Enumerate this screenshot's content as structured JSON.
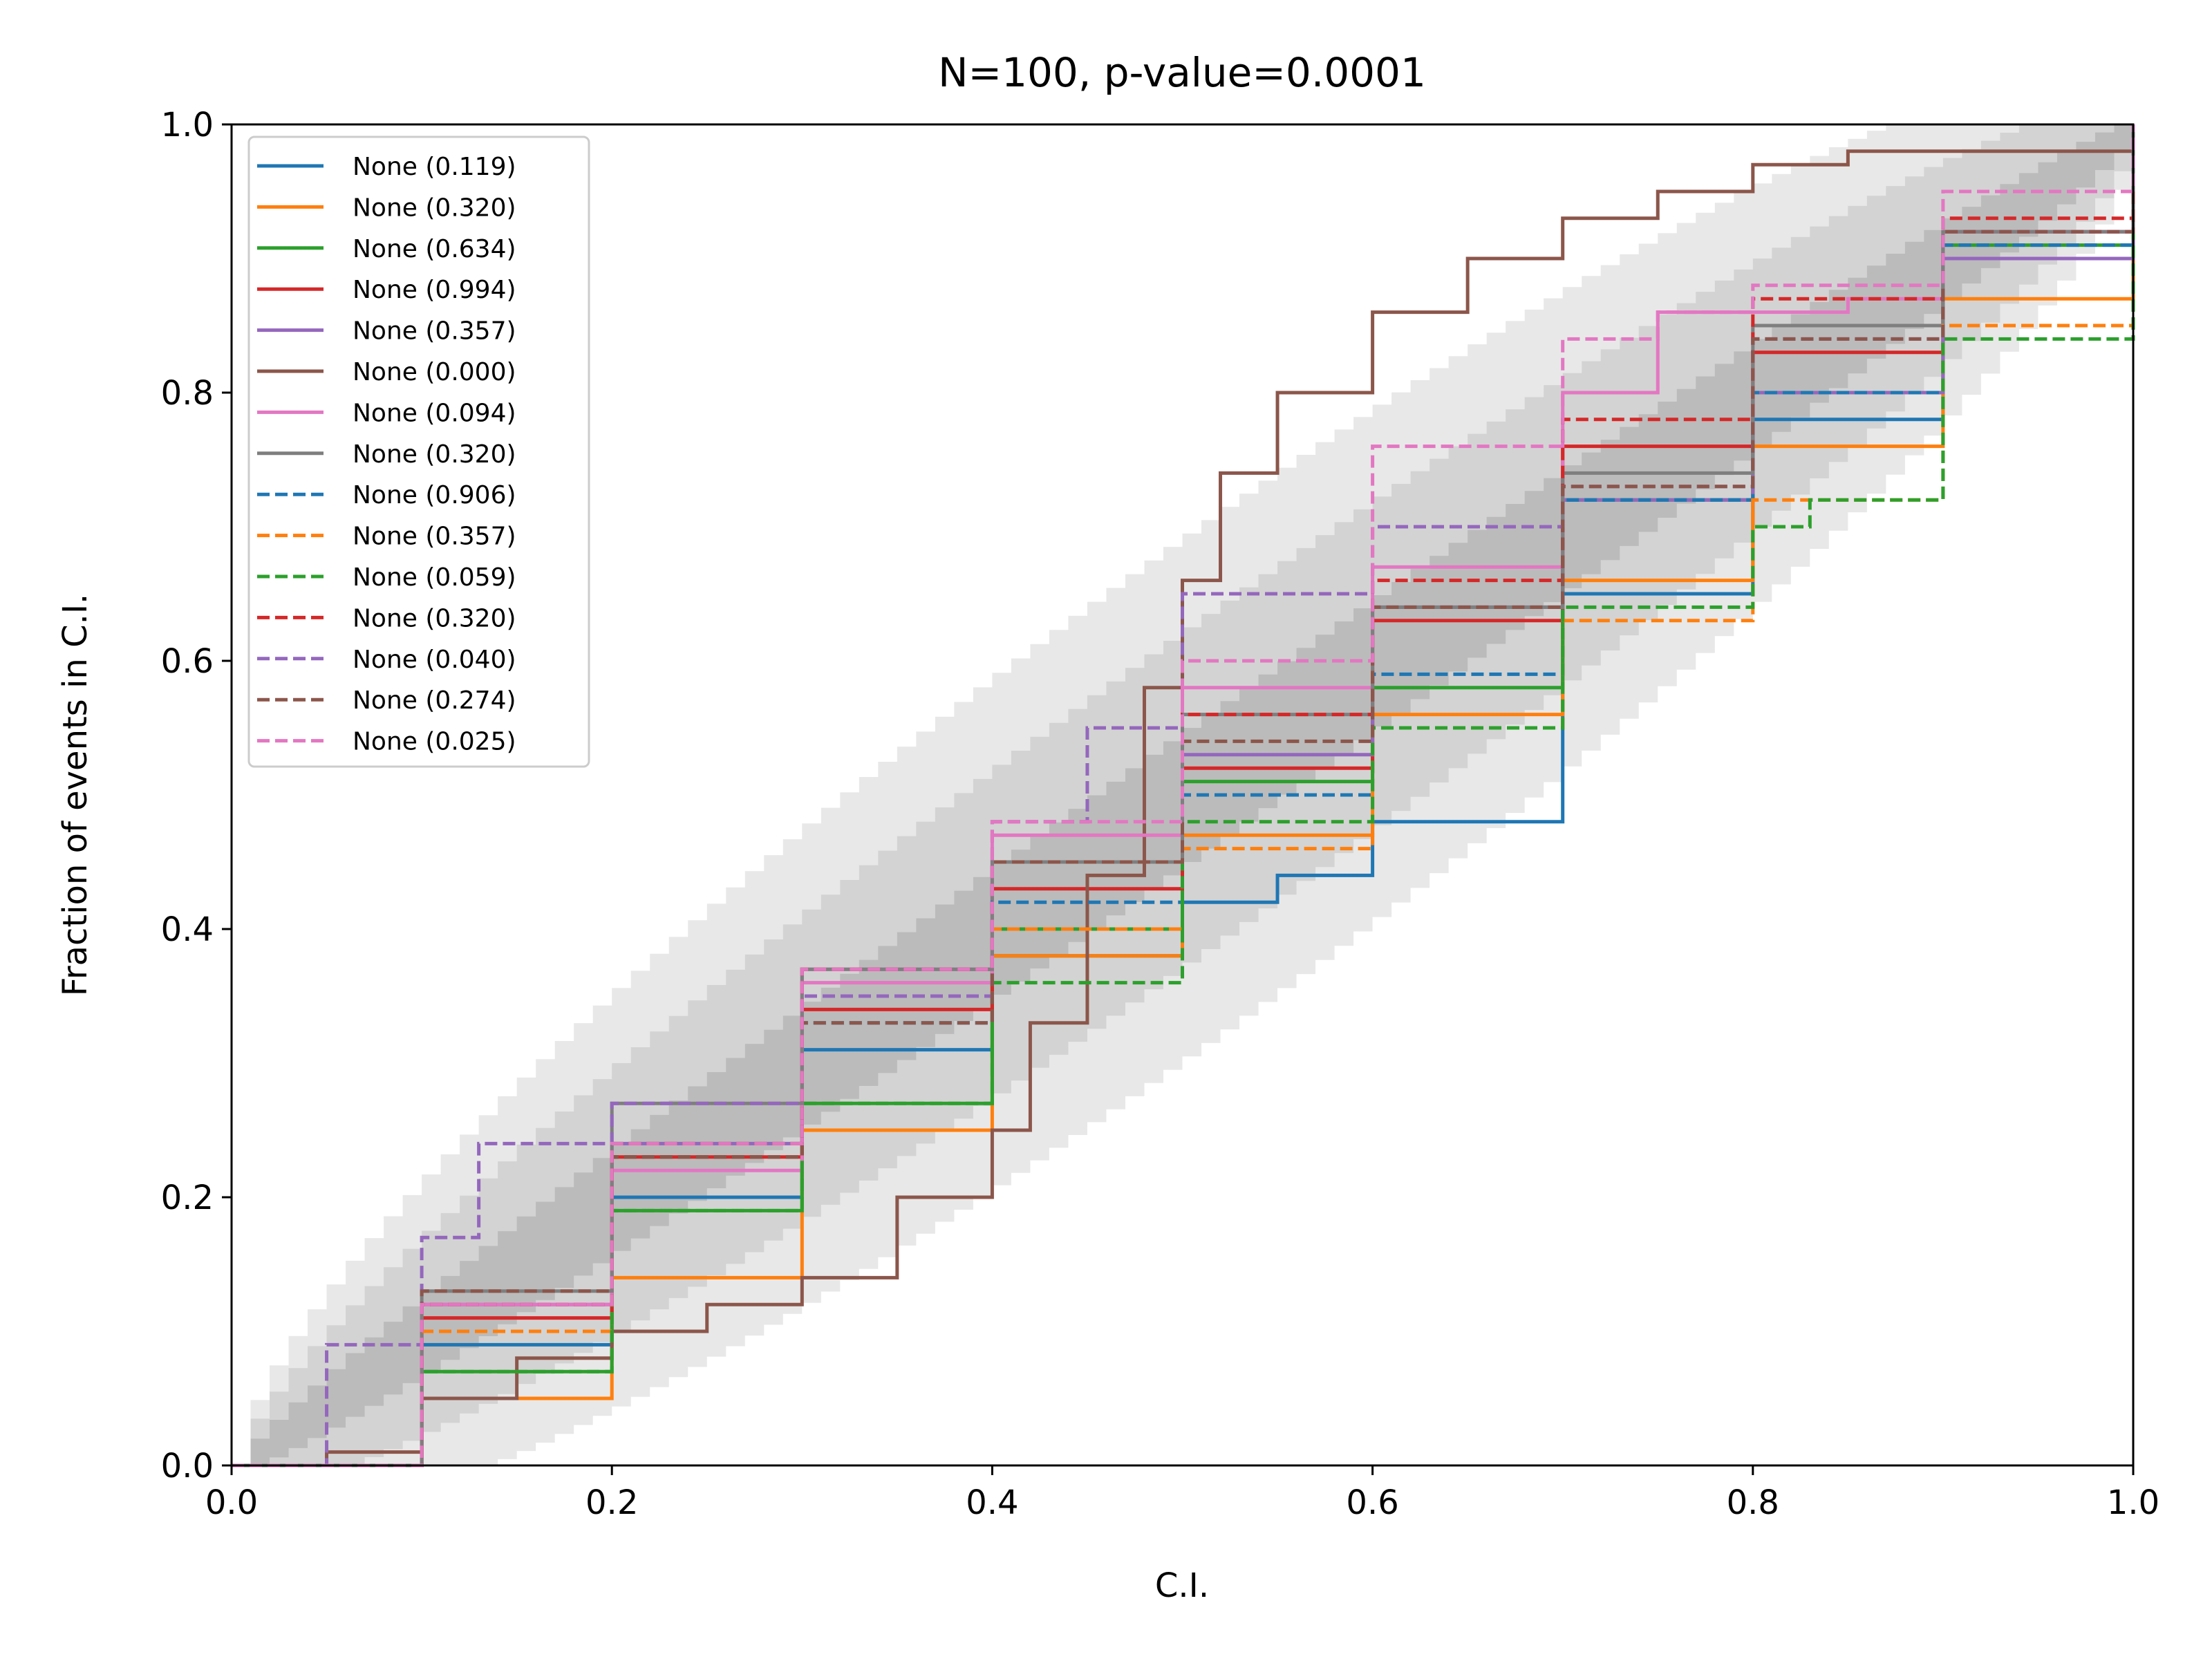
{
  "chart_data": {
    "type": "line",
    "title": "N=100, p-value=0.0001",
    "xlabel": "C.I.",
    "ylabel": "Fraction of events in C.I.",
    "xlim": [
      0.0,
      1.0
    ],
    "ylim": [
      0.0,
      1.0
    ],
    "xticks": [
      "0.0",
      "0.2",
      "0.4",
      "0.6",
      "0.8",
      "1.0"
    ],
    "yticks": [
      "0.0",
      "0.2",
      "0.4",
      "0.6",
      "0.8",
      "1.0"
    ],
    "legend_position": "upper-left",
    "bands": [
      {
        "name": "3-sigma band",
        "color": "#e6e6e6"
      },
      {
        "name": "2-sigma band",
        "color": "#d0d0d0"
      },
      {
        "name": "1-sigma band",
        "color": "#b8b8b8"
      }
    ],
    "series": [
      {
        "name": "None (0.119)",
        "color": "#1f77b4",
        "dash": "solid",
        "x": [
          0,
          0.1,
          0.2,
          0.3,
          0.4,
          0.5,
          0.55,
          0.6,
          0.7,
          0.8,
          0.9,
          1.0
        ],
        "y": [
          0,
          0.09,
          0.2,
          0.31,
          0.38,
          0.42,
          0.44,
          0.48,
          0.65,
          0.78,
          0.9,
          1.0
        ]
      },
      {
        "name": "None (0.320)",
        "color": "#ff7f0e",
        "dash": "solid",
        "x": [
          0,
          0.1,
          0.2,
          0.3,
          0.4,
          0.5,
          0.6,
          0.7,
          0.8,
          0.9,
          1.0
        ],
        "y": [
          0,
          0.05,
          0.14,
          0.25,
          0.38,
          0.47,
          0.56,
          0.66,
          0.76,
          0.87,
          1.0
        ]
      },
      {
        "name": "None (0.634)",
        "color": "#2ca02c",
        "dash": "solid",
        "x": [
          0,
          0.1,
          0.2,
          0.3,
          0.4,
          0.5,
          0.6,
          0.7,
          0.8,
          0.9,
          1.0
        ],
        "y": [
          0,
          0.07,
          0.19,
          0.27,
          0.4,
          0.51,
          0.58,
          0.72,
          0.8,
          0.91,
          1.0
        ]
      },
      {
        "name": "None (0.994)",
        "color": "#d62728",
        "dash": "solid",
        "x": [
          0,
          0.1,
          0.2,
          0.3,
          0.4,
          0.5,
          0.6,
          0.7,
          0.8,
          0.9,
          1.0
        ],
        "y": [
          0,
          0.11,
          0.23,
          0.34,
          0.43,
          0.52,
          0.63,
          0.76,
          0.83,
          0.92,
          1.0
        ]
      },
      {
        "name": "None (0.357)",
        "color": "#9467bd",
        "dash": "solid",
        "x": [
          0,
          0.1,
          0.2,
          0.3,
          0.4,
          0.5,
          0.6,
          0.7,
          0.8,
          0.9,
          1.0
        ],
        "y": [
          0,
          0.12,
          0.24,
          0.37,
          0.45,
          0.53,
          0.64,
          0.72,
          0.8,
          0.9,
          1.0
        ]
      },
      {
        "name": "None (0.000)",
        "color": "#8c564b",
        "dash": "solid",
        "x": [
          0,
          0.05,
          0.1,
          0.15,
          0.2,
          0.25,
          0.3,
          0.35,
          0.4,
          0.42,
          0.45,
          0.48,
          0.5,
          0.52,
          0.55,
          0.6,
          0.65,
          0.7,
          0.75,
          0.8,
          0.85,
          0.9,
          0.95,
          1.0
        ],
        "y": [
          0,
          0.01,
          0.05,
          0.08,
          0.1,
          0.12,
          0.14,
          0.2,
          0.25,
          0.33,
          0.44,
          0.58,
          0.66,
          0.74,
          0.8,
          0.86,
          0.9,
          0.93,
          0.95,
          0.97,
          0.98,
          0.98,
          0.98,
          1.0
        ]
      },
      {
        "name": "None (0.094)",
        "color": "#e377c2",
        "dash": "solid",
        "x": [
          0,
          0.1,
          0.2,
          0.3,
          0.4,
          0.5,
          0.6,
          0.7,
          0.75,
          0.8,
          0.85,
          0.9,
          1.0
        ],
        "y": [
          0,
          0.12,
          0.22,
          0.36,
          0.47,
          0.58,
          0.67,
          0.8,
          0.86,
          0.86,
          0.87,
          0.92,
          1.0
        ]
      },
      {
        "name": "None (0.320)",
        "color": "#7f7f7f",
        "dash": "solid",
        "x": [
          0,
          0.1,
          0.2,
          0.3,
          0.4,
          0.5,
          0.6,
          0.7,
          0.8,
          0.9,
          1.0
        ],
        "y": [
          0,
          0.13,
          0.27,
          0.37,
          0.45,
          0.56,
          0.64,
          0.74,
          0.85,
          0.92,
          1.0
        ]
      },
      {
        "name": "None (0.906)",
        "color": "#1f77b4",
        "dash": "dashed",
        "x": [
          0,
          0.1,
          0.2,
          0.3,
          0.4,
          0.5,
          0.6,
          0.7,
          0.8,
          0.9,
          1.0
        ],
        "y": [
          0,
          0.1,
          0.24,
          0.33,
          0.42,
          0.5,
          0.59,
          0.72,
          0.8,
          0.91,
          1.0
        ]
      },
      {
        "name": "None (0.357)",
        "color": "#ff7f0e",
        "dash": "dashed",
        "x": [
          0,
          0.1,
          0.2,
          0.3,
          0.4,
          0.5,
          0.6,
          0.7,
          0.8,
          0.9,
          1.0
        ],
        "y": [
          0,
          0.1,
          0.24,
          0.35,
          0.4,
          0.46,
          0.55,
          0.63,
          0.72,
          0.85,
          1.0
        ]
      },
      {
        "name": "None (0.059)",
        "color": "#2ca02c",
        "dash": "dashed",
        "x": [
          0,
          0.1,
          0.2,
          0.3,
          0.4,
          0.5,
          0.6,
          0.7,
          0.8,
          0.83,
          0.9,
          1.0
        ],
        "y": [
          0,
          0.07,
          0.19,
          0.27,
          0.36,
          0.48,
          0.55,
          0.64,
          0.7,
          0.72,
          0.84,
          1.0
        ]
      },
      {
        "name": "None (0.320)",
        "color": "#d62728",
        "dash": "dashed",
        "x": [
          0,
          0.1,
          0.2,
          0.3,
          0.4,
          0.5,
          0.6,
          0.7,
          0.8,
          0.9,
          1.0
        ],
        "y": [
          0,
          0.12,
          0.23,
          0.37,
          0.45,
          0.56,
          0.66,
          0.78,
          0.87,
          0.93,
          1.0
        ]
      },
      {
        "name": "None (0.040)",
        "color": "#9467bd",
        "dash": "dashed",
        "x": [
          0,
          0.05,
          0.1,
          0.13,
          0.2,
          0.3,
          0.4,
          0.45,
          0.5,
          0.6,
          0.7,
          0.8,
          0.9,
          1.0
        ],
        "y": [
          0,
          0.09,
          0.17,
          0.24,
          0.27,
          0.35,
          0.48,
          0.55,
          0.65,
          0.7,
          0.73,
          0.84,
          0.92,
          1.0
        ]
      },
      {
        "name": "None (0.274)",
        "color": "#8c564b",
        "dash": "dashed",
        "x": [
          0,
          0.1,
          0.2,
          0.3,
          0.4,
          0.5,
          0.6,
          0.7,
          0.8,
          0.9,
          1.0
        ],
        "y": [
          0,
          0.13,
          0.23,
          0.33,
          0.45,
          0.54,
          0.64,
          0.73,
          0.84,
          0.92,
          1.0
        ]
      },
      {
        "name": "None (0.025)",
        "color": "#e377c2",
        "dash": "dashed",
        "x": [
          0,
          0.1,
          0.2,
          0.3,
          0.4,
          0.5,
          0.6,
          0.7,
          0.75,
          0.8,
          0.9,
          1.0
        ],
        "y": [
          0,
          0.12,
          0.24,
          0.37,
          0.48,
          0.6,
          0.76,
          0.84,
          0.86,
          0.88,
          0.95,
          1.0
        ]
      }
    ]
  }
}
